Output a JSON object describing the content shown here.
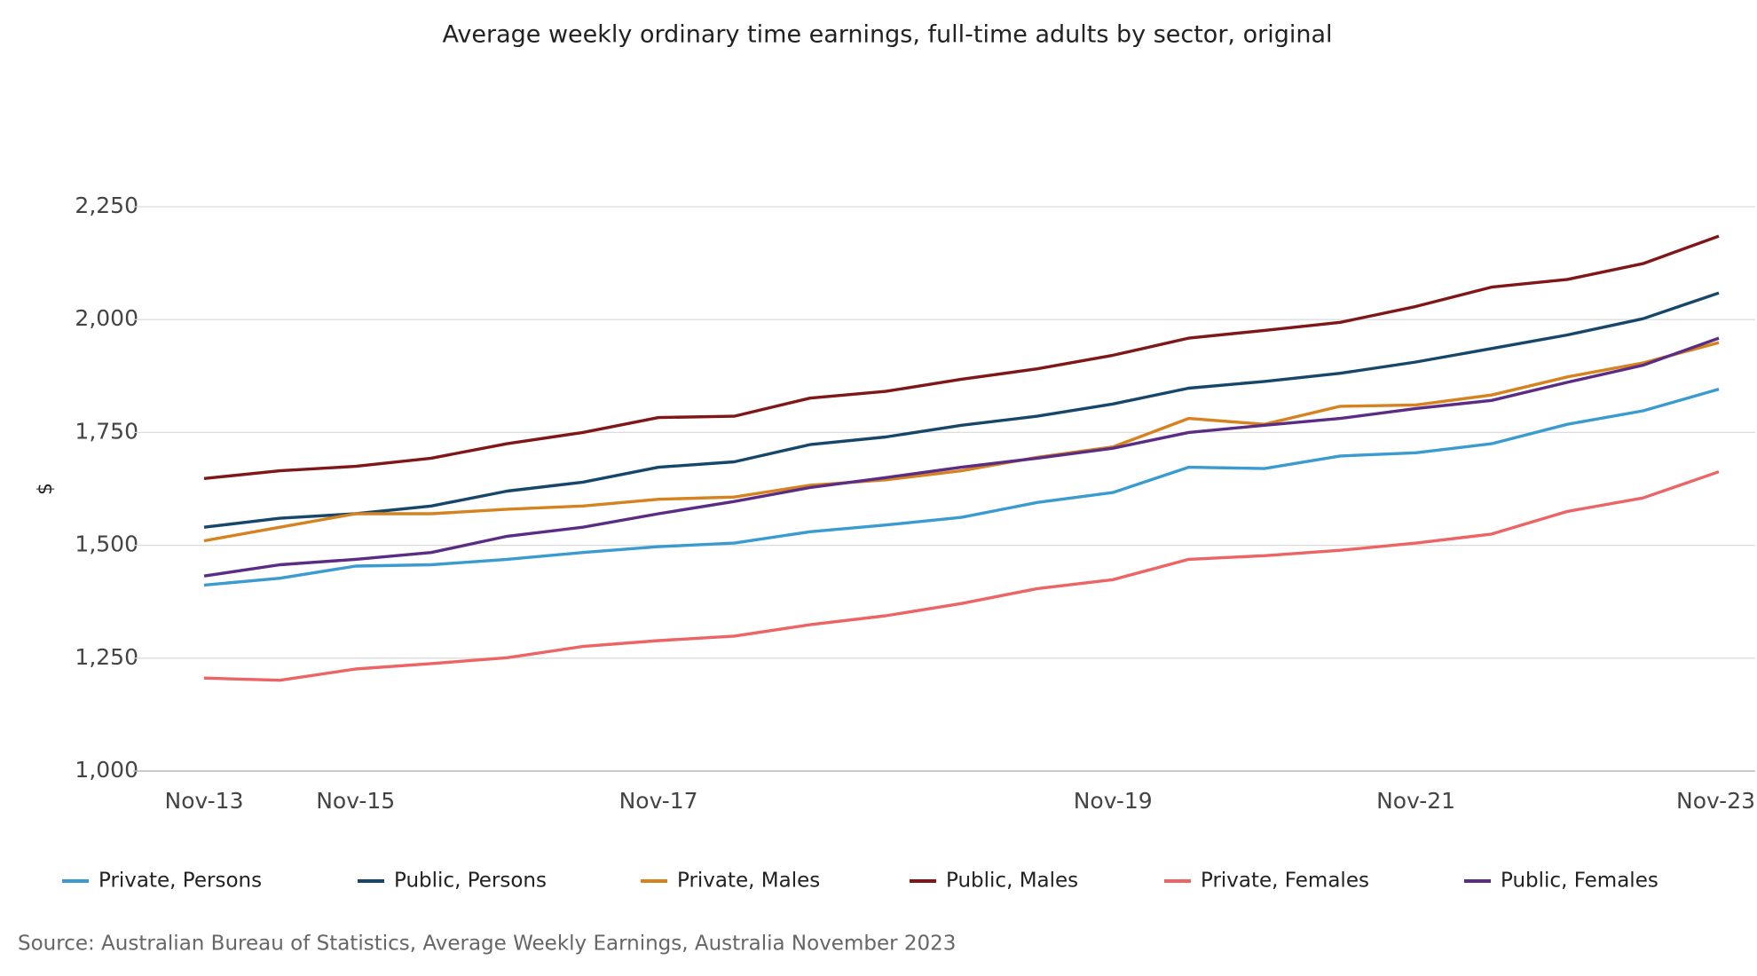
{
  "chart_data": {
    "type": "line",
    "title": "Average weekly ordinary time earnings, full-time adults by sector, original",
    "y_label": "$",
    "source": "Source: Australian Bureau of Statistics, Average Weekly Earnings, Australia November 2023",
    "categories": [
      "Nov-13",
      null,
      "Nov-15",
      null,
      null,
      null,
      "Nov-17",
      null,
      null,
      null,
      null,
      null,
      "Nov-19",
      null,
      null,
      null,
      "Nov-21",
      null,
      null,
      null,
      "Nov-23"
    ],
    "ylim": [
      1000,
      2250
    ],
    "yticks": [
      {
        "value": 1000,
        "label": "1,000"
      },
      {
        "value": 1250,
        "label": "1,250"
      },
      {
        "value": 1500,
        "label": "1,500"
      },
      {
        "value": 1750,
        "label": "1,750"
      },
      {
        "value": 2000,
        "label": "2,000"
      },
      {
        "value": 2250,
        "label": "2,250"
      }
    ],
    "grid": true,
    "legend": "bottom",
    "series": [
      {
        "name": "Private, Persons",
        "color": "#3a9bd0",
        "values": [
          1412,
          1427,
          1454,
          1457,
          1469,
          1484,
          1497,
          1505,
          1530,
          1545,
          1562,
          1595,
          1617,
          1673,
          1670,
          1698,
          1705,
          1725,
          1768,
          1798,
          1846
        ]
      },
      {
        "name": "Public, Persons",
        "color": "#16476a",
        "values": [
          1540,
          1560,
          1570,
          1587,
          1620,
          1640,
          1673,
          1685,
          1723,
          1740,
          1766,
          1786,
          1813,
          1848,
          1863,
          1881,
          1906,
          1936,
          1966,
          2002,
          2059
        ]
      },
      {
        "name": "Private, Males",
        "color": "#d5821f",
        "values": [
          1510,
          1540,
          1570,
          1570,
          1580,
          1587,
          1602,
          1607,
          1633,
          1645,
          1665,
          1695,
          1718,
          1781,
          1768,
          1808,
          1811,
          1833,
          1873,
          1904,
          1949
        ]
      },
      {
        "name": "Public, Males",
        "color": "#7f1618",
        "values": [
          1648,
          1665,
          1675,
          1693,
          1725,
          1750,
          1783,
          1786,
          1826,
          1841,
          1868,
          1891,
          1921,
          1959,
          1976,
          1994,
          2029,
          2072,
          2089,
          2124,
          2185
        ]
      },
      {
        "name": "Private, Females",
        "color": "#ec6464",
        "values": [
          1206,
          1201,
          1226,
          1238,
          1251,
          1276,
          1289,
          1299,
          1324,
          1344,
          1371,
          1404,
          1424,
          1469,
          1477,
          1489,
          1505,
          1525,
          1575,
          1605,
          1663
        ]
      },
      {
        "name": "Public, Females",
        "color": "#5b2c83",
        "values": [
          1432,
          1457,
          1469,
          1484,
          1520,
          1540,
          1570,
          1597,
          1628,
          1650,
          1673,
          1693,
          1715,
          1750,
          1766,
          1781,
          1803,
          1821,
          1861,
          1899,
          1959
        ]
      }
    ]
  }
}
